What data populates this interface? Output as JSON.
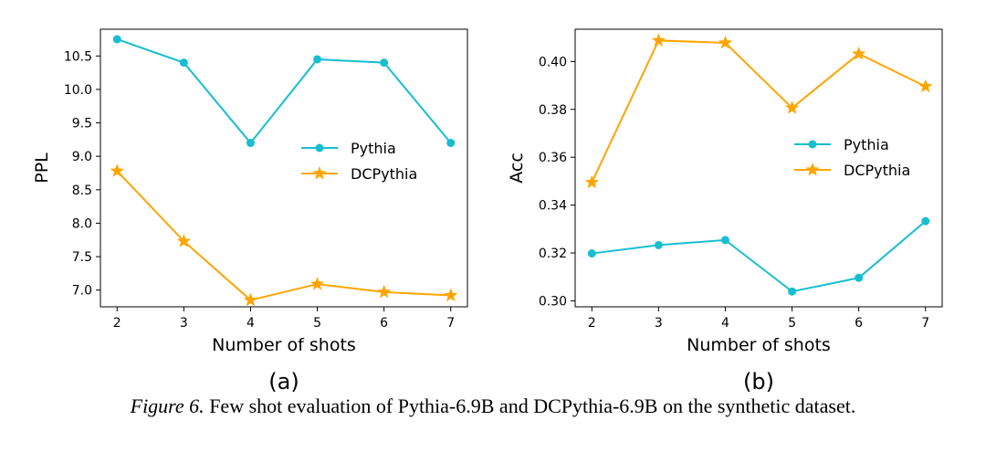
{
  "colors": {
    "pythia": "#17becf",
    "dcpythia": "#ffa500"
  },
  "caption": {
    "figure_label": "Figure 6.",
    "text": "Few shot evaluation of Pythia-6.9B and DCPythia-6.9B on the synthetic dataset."
  },
  "chart_data": [
    {
      "type": "line",
      "panel": "(a)",
      "xlabel": "Number of shots",
      "ylabel": "PPL",
      "x": [
        2,
        3,
        4,
        5,
        6,
        7
      ],
      "xticks": [
        "2",
        "3",
        "4",
        "5",
        "6",
        "7"
      ],
      "xlim": [
        1.75,
        7.25
      ],
      "ylim": [
        6.75,
        10.9
      ],
      "yticks": [
        "7.0",
        "7.5",
        "8.0",
        "8.5",
        "9.0",
        "9.5",
        "10.0",
        "10.5"
      ],
      "legend": "center-right",
      "grid": false,
      "series": [
        {
          "name": "Pythia",
          "marker": "circle",
          "values": [
            10.75,
            10.4,
            9.2,
            10.45,
            10.4,
            9.2
          ]
        },
        {
          "name": "DCPythia",
          "marker": "star",
          "values": [
            8.78,
            7.73,
            6.85,
            7.09,
            6.97,
            6.92
          ]
        }
      ]
    },
    {
      "type": "line",
      "panel": "(b)",
      "xlabel": "Number of shots",
      "ylabel": "Acc",
      "x": [
        2,
        3,
        4,
        5,
        6,
        7
      ],
      "xticks": [
        "2",
        "3",
        "4",
        "5",
        "6",
        "7"
      ],
      "xlim": [
        1.75,
        7.25
      ],
      "ylim": [
        0.2975,
        0.4135
      ],
      "yticks": [
        "0.30",
        "0.32",
        "0.34",
        "0.36",
        "0.38",
        "0.40"
      ],
      "legend": "center-right",
      "grid": false,
      "series": [
        {
          "name": "Pythia",
          "marker": "circle",
          "values": [
            0.3198,
            0.3233,
            0.3254,
            0.3039,
            0.3096,
            0.3333
          ]
        },
        {
          "name": "DCPythia",
          "marker": "star",
          "values": [
            0.3495,
            0.4088,
            0.4078,
            0.3806,
            0.4032,
            0.3896
          ]
        }
      ]
    }
  ]
}
